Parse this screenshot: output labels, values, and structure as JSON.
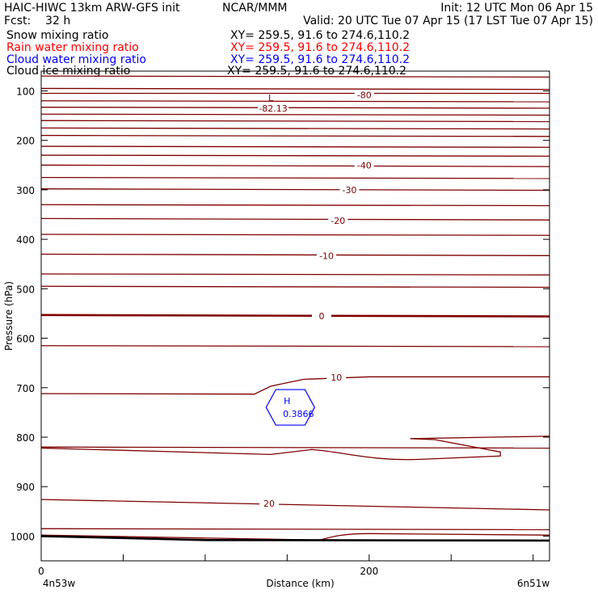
{
  "header": {
    "title": "HAIC-HIWC 13km ARW-GFS init",
    "center": "NCAR/MMM",
    "init": "Init: 12 UTC Mon 06 Apr 15",
    "fcst": "Fcst:    32 h",
    "valid": "Valid: 20 UTC Tue 07 Apr 15 (17 LST Tue 07 Apr 15)"
  },
  "fields": [
    {
      "name": "Snow mixing ratio",
      "xy": "XY= 259.5, 91.6 to 274.6,110.2",
      "color": "#000000"
    },
    {
      "name": "Rain water mixing ratio",
      "xy": "XY= 259.5, 91.6 to 274.6,110.2",
      "color": "#ff0000"
    },
    {
      "name": "Cloud water mixing ratio",
      "xy": "XY= 259.5, 91.6 to 274.6,110.2",
      "color": "#0000ff"
    },
    {
      "name": "Cloud ice mixing ratio",
      "xy": "XY= 259.5, 91.6 to 274.6,110.2",
      "color": "#000000"
    }
  ],
  "chart_data": {
    "type": "contour",
    "ylabel": "Pressure (hPa)",
    "xlabel": "Distance (km)",
    "ylim": [
      1050,
      60
    ],
    "xlim": [
      0,
      310
    ],
    "yticks": [
      100,
      200,
      300,
      400,
      500,
      600,
      700,
      800,
      900,
      1000
    ],
    "xticks_labeled": [
      0,
      200
    ],
    "xticks_minor": [
      50,
      100,
      150,
      250,
      300
    ],
    "endpoints": {
      "left": "4n53w",
      "right": "6n51w"
    },
    "temperature_contours": [
      {
        "label": "-80",
        "label_pos": [
          197,
          108
        ],
        "points": [
          [
            0,
            105
          ],
          [
            310,
            105
          ]
        ]
      },
      {
        "label": "-40",
        "label_pos": [
          197,
          250
        ],
        "points": [
          [
            0,
            250
          ],
          [
            310,
            253
          ]
        ]
      },
      {
        "label": "-30",
        "label_pos": [
          188,
          300
        ],
        "points": [
          [
            0,
            298
          ],
          [
            310,
            301
          ]
        ]
      },
      {
        "label": "-20",
        "label_pos": [
          181,
          362
        ],
        "points": [
          [
            0,
            358
          ],
          [
            310,
            361
          ]
        ]
      },
      {
        "label": "-10",
        "label_pos": [
          174,
          433
        ],
        "points": [
          [
            0,
            430
          ],
          [
            310,
            433
          ]
        ]
      },
      {
        "label": "0",
        "label_pos": [
          171,
          555
        ],
        "points": [
          [
            0,
            553
          ],
          [
            310,
            556
          ]
        ]
      },
      {
        "label": "10",
        "label_pos": [
          180,
          679
        ],
        "points": [
          [
            0,
            712
          ],
          [
            130,
            713
          ],
          [
            140,
            697
          ],
          [
            160,
            683
          ],
          [
            200,
            678
          ],
          [
            310,
            678
          ]
        ]
      },
      {
        "label": "20",
        "label_pos": [
          139,
          934
        ],
        "points": [
          [
            0,
            926
          ],
          [
            310,
            947
          ]
        ]
      }
    ],
    "min_label": {
      "label": "L",
      "value": "-82.13",
      "pos": [
        140,
        80
      ]
    },
    "cloud_water_max": {
      "label": "H",
      "value": "0.3866",
      "pos": [
        149,
        743
      ]
    }
  }
}
